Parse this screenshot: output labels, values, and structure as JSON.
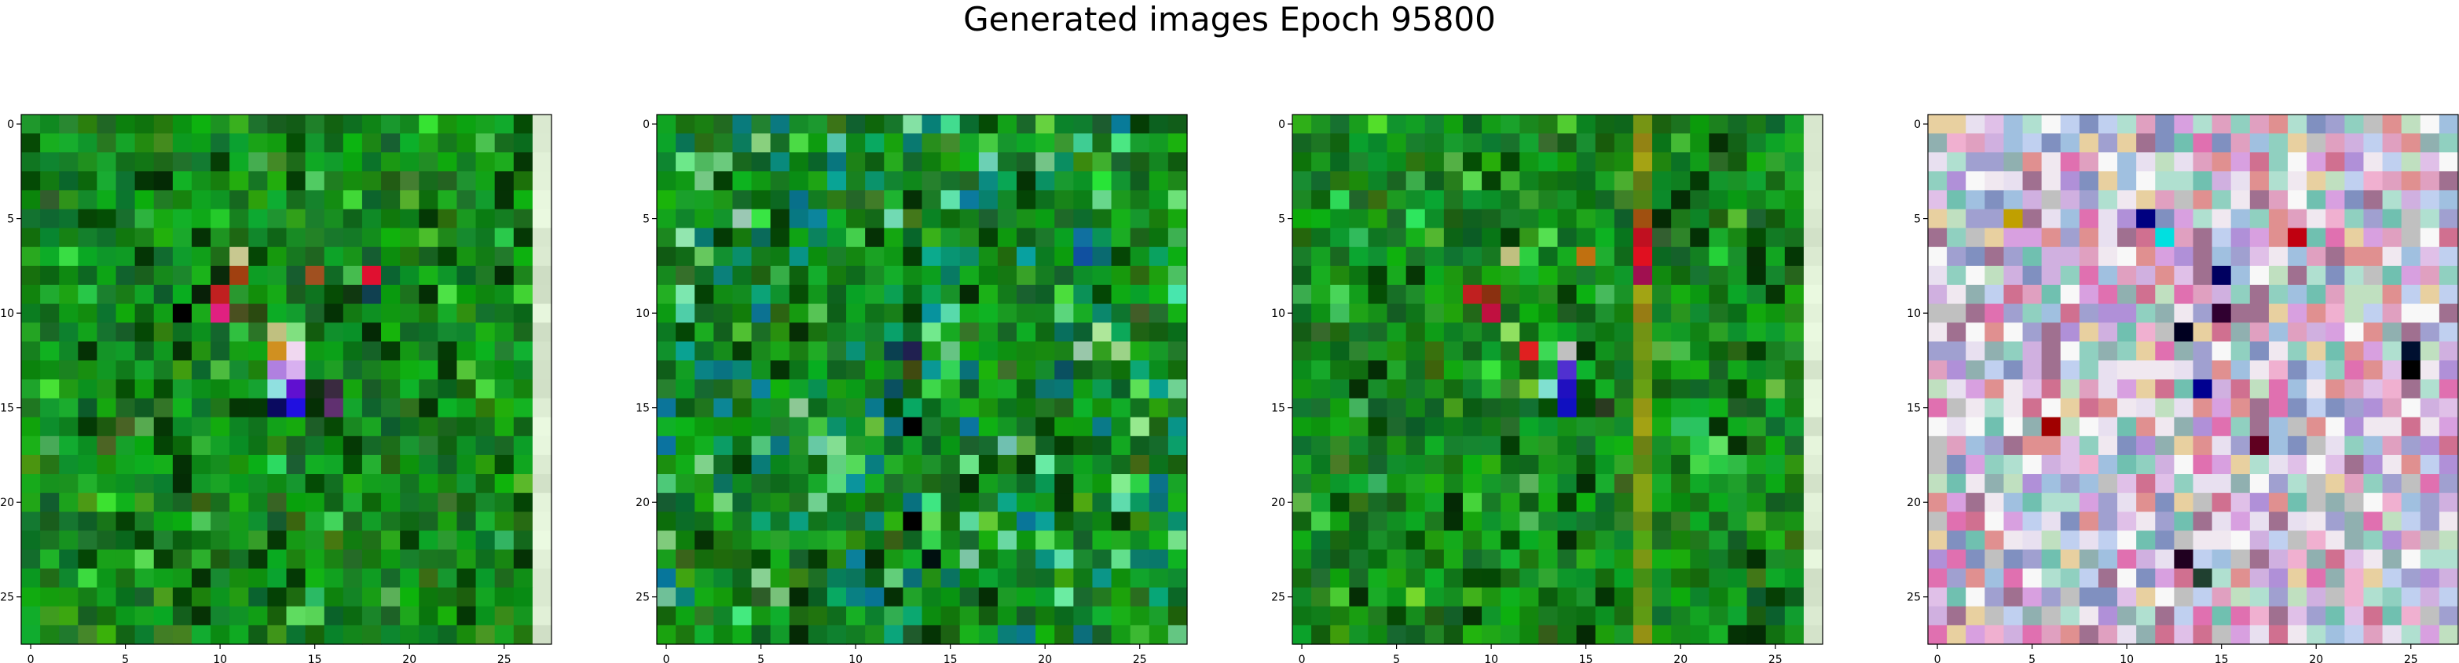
{
  "figure": {
    "title": "Generated images Epoch 95800"
  },
  "chart_data": [
    {
      "type": "heatmap",
      "title": "",
      "xlabel": "",
      "ylabel": "",
      "grid_size": [
        28,
        28
      ],
      "xlim": [
        -0.5,
        27.5
      ],
      "ylim": [
        27.5,
        -0.5
      ],
      "xticks": [
        0,
        5,
        10,
        15,
        20,
        25
      ],
      "yticks": [
        0,
        5,
        10,
        15,
        20,
        25
      ],
      "content": "noisy green tiles with a bright vertical strip at column 27 and a colored cluster near rows 7-15, columns 9-18",
      "highlight_cells": [
        {
          "r": 7,
          "c": 11,
          "color": "#c8c890"
        },
        {
          "r": 8,
          "c": 10,
          "color": "#0a2a0a"
        },
        {
          "r": 8,
          "c": 11,
          "color": "#a04010"
        },
        {
          "r": 8,
          "c": 15,
          "color": "#a05020"
        },
        {
          "r": 8,
          "c": 18,
          "color": "#e01030"
        },
        {
          "r": 9,
          "c": 9,
          "color": "#082008"
        },
        {
          "r": 9,
          "c": 10,
          "color": "#c02020"
        },
        {
          "r": 9,
          "c": 17,
          "color": "#103810"
        },
        {
          "r": 9,
          "c": 18,
          "color": "#104050"
        },
        {
          "r": 10,
          "c": 8,
          "color": "#000000"
        },
        {
          "r": 10,
          "c": 10,
          "color": "#e02080"
        },
        {
          "r": 10,
          "c": 11,
          "color": "#4a5020"
        },
        {
          "r": 10,
          "c": 12,
          "color": "#2a4a10"
        },
        {
          "r": 11,
          "c": 11,
          "color": "#30c040"
        },
        {
          "r": 11,
          "c": 13,
          "color": "#c0c080"
        },
        {
          "r": 11,
          "c": 14,
          "color": "#80e080"
        },
        {
          "r": 12,
          "c": 13,
          "color": "#d09020"
        },
        {
          "r": 12,
          "c": 14,
          "color": "#f0d8f0"
        },
        {
          "r": 13,
          "c": 13,
          "color": "#b080e0"
        },
        {
          "r": 13,
          "c": 14,
          "color": "#d8b0f0"
        },
        {
          "r": 14,
          "c": 13,
          "color": "#90e0e0"
        },
        {
          "r": 14,
          "c": 14,
          "color": "#6010d0"
        },
        {
          "r": 14,
          "c": 15,
          "color": "#103010"
        },
        {
          "r": 14,
          "c": 16,
          "color": "#3a2a40"
        },
        {
          "r": 15,
          "c": 13,
          "color": "#0a0a60"
        },
        {
          "r": 15,
          "c": 14,
          "color": "#2010e0"
        },
        {
          "r": 15,
          "c": 16,
          "color": "#603070"
        }
      ]
    },
    {
      "type": "heatmap",
      "title": "",
      "xlabel": "",
      "ylabel": "",
      "grid_size": [
        28,
        28
      ],
      "xlim": [
        -0.5,
        27.5
      ],
      "ylim": [
        27.5,
        -0.5
      ],
      "xticks": [
        0,
        5,
        10,
        15,
        20,
        25
      ],
      "yticks": [
        0,
        5,
        10,
        15,
        20,
        25
      ],
      "content": "noisy green tiles with scattered teal and dark cells",
      "highlight_cells": [
        {
          "r": 6,
          "c": 5,
          "color": "#0a6a5a"
        },
        {
          "r": 6,
          "c": 22,
          "color": "#1070a0"
        },
        {
          "r": 7,
          "c": 22,
          "color": "#1050a0"
        },
        {
          "r": 7,
          "c": 23,
          "color": "#0a6a70"
        },
        {
          "r": 12,
          "c": 12,
          "color": "#0a4050"
        },
        {
          "r": 12,
          "c": 13,
          "color": "#202050"
        },
        {
          "r": 13,
          "c": 13,
          "color": "#404a10"
        },
        {
          "r": 13,
          "c": 21,
          "color": "#0a5060"
        },
        {
          "r": 14,
          "c": 12,
          "color": "#0a5060"
        },
        {
          "r": 16,
          "c": 13,
          "color": "#000000"
        },
        {
          "r": 18,
          "c": 9,
          "color": "#60d080"
        },
        {
          "r": 20,
          "c": 8,
          "color": "#70d090"
        },
        {
          "r": 21,
          "c": 13,
          "color": "#000000"
        },
        {
          "r": 23,
          "c": 14,
          "color": "#001010"
        }
      ]
    },
    {
      "type": "heatmap",
      "title": "",
      "xlabel": "",
      "ylabel": "",
      "grid_size": [
        28,
        28
      ],
      "xlim": [
        -0.5,
        27.5
      ],
      "ylim": [
        27.5,
        -0.5
      ],
      "xticks": [
        0,
        5,
        10,
        15,
        20,
        25
      ],
      "yticks": [
        0,
        5,
        10,
        15,
        20,
        25
      ],
      "content": "noisy green tiles with a bright vertical strip at column 27, a brownish vertical streak at column 18 and a colored cluster near rows 8-15",
      "highlight_cells": [
        {
          "r": 5,
          "c": 18,
          "color": "#a05010"
        },
        {
          "r": 6,
          "c": 18,
          "color": "#c01020"
        },
        {
          "r": 7,
          "c": 11,
          "color": "#c0c080"
        },
        {
          "r": 7,
          "c": 15,
          "color": "#c07010"
        },
        {
          "r": 7,
          "c": 18,
          "color": "#e01020"
        },
        {
          "r": 8,
          "c": 18,
          "color": "#a01050"
        },
        {
          "r": 9,
          "c": 9,
          "color": "#c02020"
        },
        {
          "r": 9,
          "c": 10,
          "color": "#8a3010"
        },
        {
          "r": 10,
          "c": 10,
          "color": "#c01040"
        },
        {
          "r": 11,
          "c": 11,
          "color": "#90e060"
        },
        {
          "r": 12,
          "c": 12,
          "color": "#e02020"
        },
        {
          "r": 12,
          "c": 14,
          "color": "#c0c0c0"
        },
        {
          "r": 13,
          "c": 14,
          "color": "#5030d0"
        },
        {
          "r": 14,
          "c": 13,
          "color": "#80e0d0"
        },
        {
          "r": 14,
          "c": 14,
          "color": "#2010c0"
        },
        {
          "r": 15,
          "c": 14,
          "color": "#1010c0"
        },
        {
          "r": 15,
          "c": 16,
          "color": "#2a3a20"
        }
      ]
    },
    {
      "type": "heatmap",
      "title": "",
      "xlabel": "",
      "ylabel": "",
      "grid_size": [
        28,
        28
      ],
      "xlim": [
        -0.5,
        27.5
      ],
      "ylim": [
        27.5,
        -0.5
      ],
      "xticks": [
        0,
        5,
        10,
        15,
        20,
        25
      ],
      "yticks": [
        0,
        5,
        10,
        15,
        20,
        25
      ],
      "content": "multicolor pastel noise tiles",
      "highlight_cells": [
        {
          "r": 5,
          "c": 4,
          "color": "#c0a000"
        },
        {
          "r": 5,
          "c": 11,
          "color": "#000080"
        },
        {
          "r": 6,
          "c": 12,
          "color": "#00e0e0"
        },
        {
          "r": 6,
          "c": 19,
          "color": "#c00010"
        },
        {
          "r": 8,
          "c": 15,
          "color": "#000060"
        },
        {
          "r": 10,
          "c": 15,
          "color": "#300030"
        },
        {
          "r": 11,
          "c": 13,
          "color": "#000020"
        },
        {
          "r": 12,
          "c": 25,
          "color": "#001030"
        },
        {
          "r": 13,
          "c": 25,
          "color": "#000000"
        },
        {
          "r": 14,
          "c": 14,
          "color": "#000090"
        },
        {
          "r": 16,
          "c": 6,
          "color": "#a00000"
        },
        {
          "r": 17,
          "c": 17,
          "color": "#600020"
        },
        {
          "r": 23,
          "c": 13,
          "color": "#200020"
        },
        {
          "r": 24,
          "c": 14,
          "color": "#204030"
        }
      ]
    }
  ]
}
